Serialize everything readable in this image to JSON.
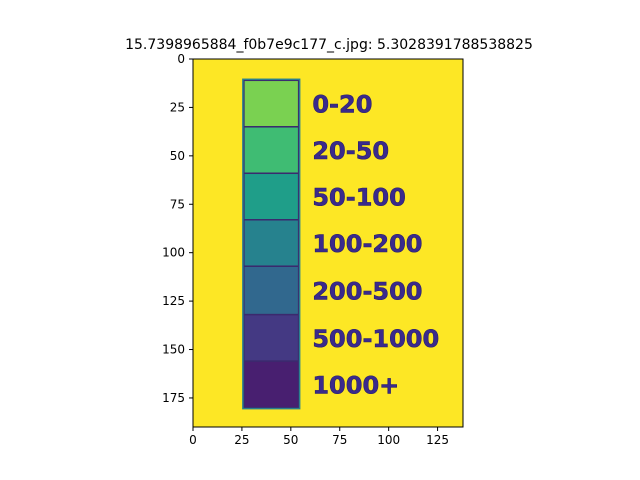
{
  "figure": {
    "title": "15.7398965884_f0b7e9c177_c.jpg: 5.3028391788538825"
  },
  "chart_data": {
    "type": "image",
    "image_background": "#fde725",
    "xlim": [
      0,
      138
    ],
    "ylim": [
      190,
      0
    ],
    "x_ticks": [
      0,
      25,
      50,
      75,
      100,
      125
    ],
    "y_ticks": [
      0,
      25,
      50,
      75,
      100,
      125,
      150,
      175
    ],
    "legend": {
      "colorbar_x_range": [
        26,
        54
      ],
      "colorbar_y_range": [
        11,
        180
      ],
      "outline_color": "#2a7f8e",
      "swatches": [
        {
          "label": "0-20",
          "color": "#7ad151",
          "y_range": [
            11,
            35
          ]
        },
        {
          "label": "20-50",
          "color": "#3fbc73",
          "y_range": [
            35,
            59
          ]
        },
        {
          "label": "50-100",
          "color": "#1f9e89",
          "y_range": [
            59,
            83
          ]
        },
        {
          "label": "100-200",
          "color": "#26828e",
          "y_range": [
            83,
            107
          ]
        },
        {
          "label": "200-500",
          "color": "#31688e",
          "y_range": [
            107,
            132
          ]
        },
        {
          "label": "500-1000",
          "color": "#443983",
          "y_range": [
            132,
            156
          ]
        },
        {
          "label": "1000+",
          "color": "#481f70",
          "y_range": [
            156,
            180
          ]
        }
      ]
    }
  }
}
